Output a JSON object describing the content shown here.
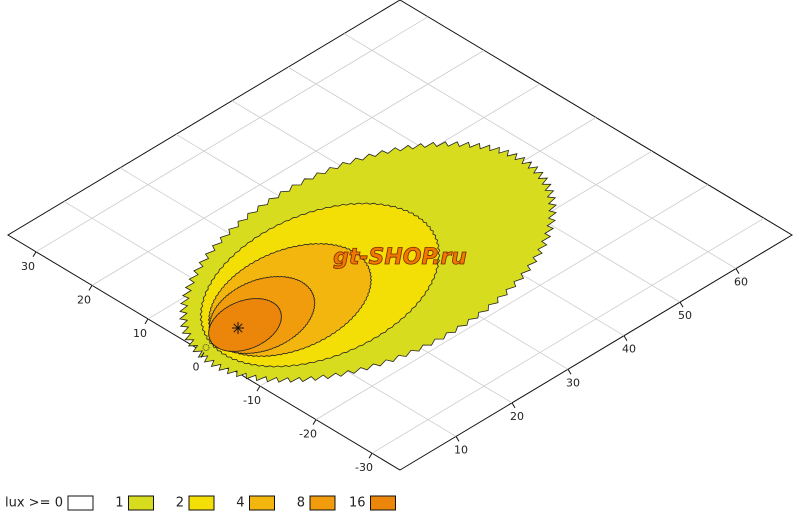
{
  "chart_data": {
    "type": "contour",
    "legend_title": "lux >=",
    "levels": [
      0,
      1,
      2,
      4,
      8,
      16
    ],
    "colors": [
      "#ffffff",
      "#d8dc1e",
      "#f3df05",
      "#f3b60f",
      "#f09c0c",
      "#ec860a"
    ],
    "xlim": [
      0,
      70
    ],
    "ylim": [
      -35,
      35
    ],
    "xticks": [
      10,
      20,
      30,
      40,
      50,
      60
    ],
    "yticks": [
      -30,
      -20,
      -10,
      0,
      10,
      20,
      30
    ],
    "grid": true,
    "watermark": "gt-SHOP.ru"
  }
}
